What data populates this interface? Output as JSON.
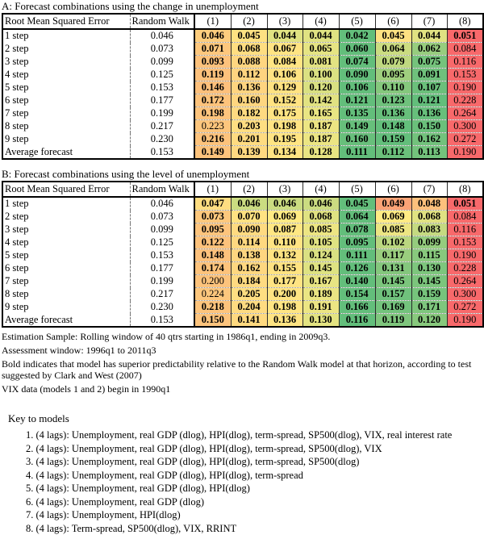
{
  "colors": {
    "scale_low_green": "#63BE7B",
    "scale_mid_yellow": "#FFEB84",
    "scale_high_red": "#F8696B",
    "table_border": "#000000",
    "background": "#FFFFFF",
    "text": "#000000"
  },
  "tables": [
    {
      "id": "a",
      "title": "A: Forecast combinations using the change in unemployment",
      "header": {
        "rmse": "Root Mean Squared Error",
        "random_walk": "Random Walk",
        "models": [
          "(1)",
          "(2)",
          "(3)",
          "(4)",
          "(5)",
          "(6)",
          "(7)",
          "(8)"
        ]
      },
      "rows": [
        {
          "label": "1 step",
          "random_walk": "0.046",
          "values": [
            "0.046",
            "0.045",
            "0.044",
            "0.044",
            "0.042",
            "0.045",
            "0.044",
            "0.051"
          ],
          "bold": [
            1,
            1,
            1,
            1,
            1,
            1,
            1,
            1
          ]
        },
        {
          "label": "2 step",
          "random_walk": "0.073",
          "values": [
            "0.071",
            "0.068",
            "0.067",
            "0.065",
            "0.060",
            "0.064",
            "0.062",
            "0.084"
          ],
          "bold": [
            1,
            1,
            1,
            1,
            1,
            1,
            1,
            0
          ]
        },
        {
          "label": "3 step",
          "random_walk": "0.099",
          "values": [
            "0.093",
            "0.088",
            "0.084",
            "0.081",
            "0.074",
            "0.079",
            "0.075",
            "0.116"
          ],
          "bold": [
            1,
            1,
            1,
            1,
            1,
            1,
            1,
            0
          ]
        },
        {
          "label": "4 step",
          "random_walk": "0.125",
          "values": [
            "0.119",
            "0.112",
            "0.106",
            "0.100",
            "0.090",
            "0.095",
            "0.091",
            "0.153"
          ],
          "bold": [
            1,
            1,
            1,
            1,
            1,
            1,
            1,
            0
          ]
        },
        {
          "label": "5 step",
          "random_walk": "0.153",
          "values": [
            "0.146",
            "0.136",
            "0.129",
            "0.120",
            "0.106",
            "0.110",
            "0.107",
            "0.190"
          ],
          "bold": [
            1,
            1,
            1,
            1,
            1,
            1,
            1,
            0
          ]
        },
        {
          "label": "6 step",
          "random_walk": "0.177",
          "values": [
            "0.172",
            "0.160",
            "0.152",
            "0.142",
            "0.121",
            "0.123",
            "0.121",
            "0.228"
          ],
          "bold": [
            1,
            1,
            1,
            1,
            1,
            1,
            1,
            0
          ]
        },
        {
          "label": "7 step",
          "random_walk": "0.199",
          "values": [
            "0.198",
            "0.182",
            "0.175",
            "0.165",
            "0.135",
            "0.136",
            "0.136",
            "0.264"
          ],
          "bold": [
            1,
            1,
            1,
            1,
            1,
            1,
            1,
            0
          ]
        },
        {
          "label": "8 step",
          "random_walk": "0.217",
          "values": [
            "0.223",
            "0.203",
            "0.198",
            "0.187",
            "0.149",
            "0.148",
            "0.150",
            "0.300"
          ],
          "bold": [
            0,
            1,
            1,
            1,
            1,
            1,
            1,
            0
          ]
        },
        {
          "label": "9 step",
          "random_walk": "0.230",
          "values": [
            "0.216",
            "0.201",
            "0.195",
            "0.187",
            "0.160",
            "0.159",
            "0.162",
            "0.272"
          ],
          "bold": [
            1,
            1,
            1,
            1,
            1,
            1,
            1,
            0
          ]
        },
        {
          "label": "Average forecast",
          "random_walk": "0.153",
          "values": [
            "0.149",
            "0.139",
            "0.134",
            "0.128",
            "0.111",
            "0.112",
            "0.113",
            "0.190"
          ],
          "bold": [
            1,
            1,
            1,
            1,
            1,
            1,
            1,
            0
          ]
        }
      ]
    },
    {
      "id": "b",
      "title": "B: Forecast combinations using the level of unemployment",
      "header": {
        "rmse": "Root Mean Squared Error",
        "random_walk": "Random Walk",
        "models": [
          "(1)",
          "(2)",
          "(3)",
          "(4)",
          "(5)",
          "(6)",
          "(7)",
          "(8)"
        ]
      },
      "rows": [
        {
          "label": "1 step",
          "random_walk": "0.046",
          "values": [
            "0.047",
            "0.046",
            "0.046",
            "0.046",
            "0.045",
            "0.049",
            "0.048",
            "0.051"
          ],
          "bold": [
            1,
            1,
            1,
            1,
            1,
            1,
            1,
            1
          ]
        },
        {
          "label": "2 step",
          "random_walk": "0.073",
          "values": [
            "0.073",
            "0.070",
            "0.069",
            "0.068",
            "0.064",
            "0.069",
            "0.068",
            "0.084"
          ],
          "bold": [
            1,
            1,
            1,
            1,
            1,
            1,
            1,
            0
          ]
        },
        {
          "label": "3 step",
          "random_walk": "0.099",
          "values": [
            "0.095",
            "0.090",
            "0.087",
            "0.085",
            "0.078",
            "0.085",
            "0.083",
            "0.116"
          ],
          "bold": [
            1,
            1,
            1,
            1,
            1,
            1,
            1,
            0
          ]
        },
        {
          "label": "4 step",
          "random_walk": "0.125",
          "values": [
            "0.122",
            "0.114",
            "0.110",
            "0.105",
            "0.095",
            "0.102",
            "0.099",
            "0.153"
          ],
          "bold": [
            1,
            1,
            1,
            1,
            1,
            1,
            1,
            0
          ]
        },
        {
          "label": "5 step",
          "random_walk": "0.153",
          "values": [
            "0.148",
            "0.138",
            "0.132",
            "0.124",
            "0.111",
            "0.117",
            "0.115",
            "0.190"
          ],
          "bold": [
            1,
            1,
            1,
            1,
            1,
            1,
            1,
            0
          ]
        },
        {
          "label": "6 step",
          "random_walk": "0.177",
          "values": [
            "0.174",
            "0.162",
            "0.155",
            "0.145",
            "0.126",
            "0.131",
            "0.130",
            "0.228"
          ],
          "bold": [
            1,
            1,
            1,
            1,
            1,
            1,
            1,
            0
          ]
        },
        {
          "label": "7 step",
          "random_walk": "0.199",
          "values": [
            "0.200",
            "0.184",
            "0.177",
            "0.167",
            "0.140",
            "0.145",
            "0.145",
            "0.264"
          ],
          "bold": [
            0,
            1,
            1,
            1,
            1,
            1,
            1,
            0
          ]
        },
        {
          "label": "8 step",
          "random_walk": "0.217",
          "values": [
            "0.224",
            "0.205",
            "0.200",
            "0.189",
            "0.154",
            "0.157",
            "0.159",
            "0.300"
          ],
          "bold": [
            0,
            1,
            1,
            1,
            1,
            1,
            1,
            0
          ]
        },
        {
          "label": "9 step",
          "random_walk": "0.230",
          "values": [
            "0.218",
            "0.204",
            "0.198",
            "0.191",
            "0.166",
            "0.169",
            "0.171",
            "0.272"
          ],
          "bold": [
            1,
            1,
            1,
            1,
            1,
            1,
            1,
            0
          ]
        },
        {
          "label": "Average forecast",
          "random_walk": "0.153",
          "values": [
            "0.150",
            "0.141",
            "0.136",
            "0.130",
            "0.116",
            "0.119",
            "0.120",
            "0.190"
          ],
          "bold": [
            1,
            1,
            1,
            1,
            1,
            1,
            1,
            0
          ]
        }
      ]
    }
  ],
  "footnotes": [
    "Estimation Sample: Rolling window of 40 qtrs starting in 1986q1, ending in 2009q3.",
    "Assessment window: 1996q1 to 2011q3",
    "Bold indicates that model has superior predictability relative to the Random Walk model at that horizon, according to test suggested by Clark and West (2007)",
    "VIX data (models 1 and 2) begin in 1990q1"
  ],
  "key": {
    "heading": "Key to models",
    "items": [
      "1. (4 lags): Unemployment, real GDP (dlog),  HPI(dlog), term-spread, SP500(dlog), VIX, real interest rate",
      "2. (4 lags): Unemployment, real GDP (dlog),  HPI(dlog), term-spread, SP500(dlog), VIX",
      "3. (4 lags): Unemployment, real GDP (dlog),  HPI(dlog), term-spread, SP500(dlog)",
      "4. (4 lags): Unemployment, real GDP (dlog),  HPI(dlog), term-spread",
      "5. (4 lags): Unemployment, real GDP (dlog),  HPI(dlog)",
      "6. (4 lags): Unemployment, real GDP (dlog)",
      "7. (4 lags): Unemployment, HPI(dlog)",
      "8. (4 lags): Term-spread, SP500(dlog), VIX, RRINT"
    ]
  }
}
